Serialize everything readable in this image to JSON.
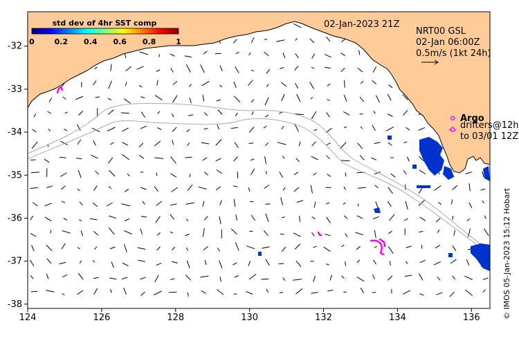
{
  "map": {
    "lon_range": [
      124,
      136.5
    ],
    "lat_range": [
      -38.1,
      -31.2
    ],
    "x_ticks": [
      "124",
      "126",
      "128",
      "130",
      "132",
      "134",
      "136"
    ],
    "y_ticks": [
      "-32",
      "-33",
      "-34",
      "-35",
      "-36",
      "-37",
      "-38"
    ],
    "land_color": "#ffcc99",
    "ocean_color": "#ffffff",
    "contour_color": "#aaaaaa",
    "arrow_color": "#000000"
  },
  "colorbar": {
    "title": "std dev of 4hr SST comp",
    "range": [
      0,
      1
    ],
    "tick_labels": [
      "0",
      "0.2",
      "0.4",
      "0.6",
      "0.8",
      "1"
    ],
    "colors": [
      "#00007f",
      "#0000ff",
      "#007fff",
      "#00ffff",
      "#7fff7f",
      "#ffff00",
      "#ff7f00",
      "#ff0000",
      "#7f0000"
    ]
  },
  "header": {
    "date": "02-Jan-2023 21Z",
    "product": "NRT00 GSL",
    "product_time": "02-Jan 06:00Z",
    "scale": "0.5m/s (1kt 24h)"
  },
  "legend": {
    "argo": "Argo",
    "drifters_line1": "drifters@12h",
    "drifters_line2": "to 03/01 12Z",
    "argo_color": "#ff00ff",
    "drifter_color": "#ff00ff",
    "sst_patch_color": "#0033cc"
  },
  "credit": "© IMOS 05-Jan-2023 15:12 Hobart"
}
